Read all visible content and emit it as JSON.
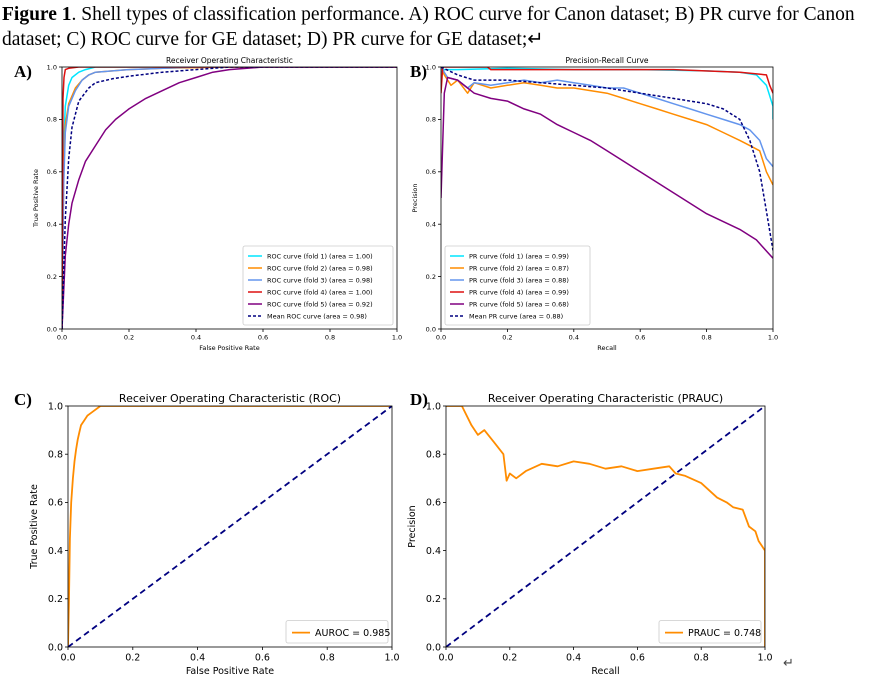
{
  "caption": {
    "label": "Figure 1",
    "text": ". Shell types of classification performance. A) ROC curve for Canon dataset; B) PR curve for Canon dataset; C) ROC curve for GE dataset; D) PR curve for GE dataset;↵"
  },
  "panels": [
    "A)",
    "B)",
    "C)",
    "D)"
  ],
  "return_mark": "↵",
  "chart_data": [
    {
      "type": "line",
      "title": "Receiver Operating Characteristic",
      "xlabel": "False Positive Rate",
      "ylabel": "True Positive Rate",
      "xlim": [
        0,
        1
      ],
      "ylim": [
        0,
        1
      ],
      "xticks": [
        "0.0",
        "0.2",
        "0.4",
        "0.6",
        "0.8",
        "1.0"
      ],
      "yticks": [
        "0.0",
        "0.2",
        "0.4",
        "0.6",
        "0.8",
        "1.0"
      ],
      "legend_position": "lower-right",
      "series": [
        {
          "name": "ROC curve (fold 1) (area = 1.00)",
          "color": "#00e5ff",
          "style": "solid",
          "x": [
            0,
            0.005,
            0.01,
            0.02,
            0.03,
            0.05,
            0.07,
            0.1,
            0.2,
            1
          ],
          "y": [
            0,
            0.7,
            0.85,
            0.93,
            0.96,
            0.98,
            0.99,
            1.0,
            1.0,
            1.0
          ]
        },
        {
          "name": "ROC curve (fold 2) (area = 0.98)",
          "color": "#ff8c00",
          "style": "solid",
          "x": [
            0,
            0.005,
            0.01,
            0.02,
            0.04,
            0.06,
            0.08,
            0.1,
            0.2,
            0.3,
            0.5,
            1
          ],
          "y": [
            0,
            0.6,
            0.78,
            0.86,
            0.92,
            0.95,
            0.97,
            0.98,
            0.99,
            0.995,
            1.0,
            1.0
          ]
        },
        {
          "name": "ROC curve (fold 3) (area = 0.98)",
          "color": "#6495ed",
          "style": "solid",
          "x": [
            0,
            0.005,
            0.01,
            0.02,
            0.04,
            0.06,
            0.08,
            0.1,
            0.2,
            0.4,
            1
          ],
          "y": [
            0,
            0.55,
            0.75,
            0.85,
            0.91,
            0.95,
            0.97,
            0.98,
            0.99,
            1.0,
            1.0
          ]
        },
        {
          "name": "ROC curve (fold 4) (area = 1.00)",
          "color": "#dd1111",
          "style": "solid",
          "x": [
            0,
            0.003,
            0.006,
            0.01,
            0.02,
            0.05,
            0.1,
            1
          ],
          "y": [
            0,
            0.88,
            0.96,
            0.99,
            0.995,
            1.0,
            1.0,
            1.0
          ]
        },
        {
          "name": "ROC curve (fold 5) (area = 0.92)",
          "color": "#800080",
          "style": "solid",
          "x": [
            0,
            0.01,
            0.02,
            0.03,
            0.05,
            0.07,
            0.1,
            0.13,
            0.16,
            0.2,
            0.25,
            0.3,
            0.35,
            0.4,
            0.45,
            0.5,
            0.6,
            0.7,
            1.0
          ],
          "y": [
            0,
            0.28,
            0.4,
            0.48,
            0.57,
            0.64,
            0.7,
            0.76,
            0.8,
            0.84,
            0.88,
            0.91,
            0.94,
            0.96,
            0.98,
            0.99,
            1.0,
            1.0,
            1.0
          ]
        },
        {
          "name": "Mean ROC curve (area = 0.98)",
          "color": "#000080",
          "style": "dashed",
          "x": [
            0,
            0.01,
            0.02,
            0.03,
            0.05,
            0.08,
            0.1,
            0.15,
            0.2,
            0.3,
            0.4,
            0.5,
            1
          ],
          "y": [
            0,
            0.42,
            0.65,
            0.77,
            0.87,
            0.92,
            0.94,
            0.955,
            0.965,
            0.98,
            0.99,
            1.0,
            1.0
          ]
        }
      ]
    },
    {
      "type": "line",
      "title": "Precision-Recall Curve",
      "xlabel": "Recall",
      "ylabel": "Precision",
      "xlim": [
        0,
        1
      ],
      "ylim": [
        0,
        1
      ],
      "xticks": [
        "0.0",
        "0.2",
        "0.4",
        "0.6",
        "0.8",
        "1.0"
      ],
      "yticks": [
        "0.0",
        "0.2",
        "0.4",
        "0.6",
        "0.8",
        "1.0"
      ],
      "legend_position": "lower-left",
      "series": [
        {
          "name": "PR curve (fold 1) (area = 0.99)",
          "color": "#00e5ff",
          "style": "solid",
          "x": [
            0,
            0.01,
            0.05,
            0.2,
            0.4,
            0.6,
            0.8,
            0.9,
            0.95,
            0.98,
            1.0,
            1.0
          ],
          "y": [
            0.98,
            0.99,
            0.99,
            0.995,
            0.99,
            0.99,
            0.985,
            0.98,
            0.97,
            0.93,
            0.85,
            0.8
          ]
        },
        {
          "name": "PR curve (fold 2) (area = 0.87)",
          "color": "#ff8c00",
          "style": "solid",
          "x": [
            0,
            0.01,
            0.03,
            0.05,
            0.08,
            0.1,
            0.15,
            0.2,
            0.25,
            0.3,
            0.35,
            0.4,
            0.45,
            0.5,
            0.55,
            0.6,
            0.65,
            0.7,
            0.75,
            0.8,
            0.85,
            0.9,
            0.93,
            0.96,
            0.98,
            1.0
          ],
          "y": [
            1.0,
            0.97,
            0.93,
            0.95,
            0.9,
            0.94,
            0.92,
            0.93,
            0.94,
            0.93,
            0.92,
            0.92,
            0.91,
            0.9,
            0.88,
            0.86,
            0.84,
            0.82,
            0.8,
            0.78,
            0.75,
            0.72,
            0.7,
            0.68,
            0.6,
            0.55
          ]
        },
        {
          "name": "PR curve (fold 3) (area = 0.88)",
          "color": "#6495ed",
          "style": "solid",
          "x": [
            0,
            0.02,
            0.05,
            0.08,
            0.1,
            0.15,
            0.2,
            0.25,
            0.3,
            0.35,
            0.4,
            0.45,
            0.5,
            0.55,
            0.6,
            0.65,
            0.7,
            0.75,
            0.8,
            0.85,
            0.9,
            0.93,
            0.96,
            0.98,
            1.0
          ],
          "y": [
            1.0,
            0.96,
            0.95,
            0.92,
            0.94,
            0.93,
            0.94,
            0.95,
            0.94,
            0.95,
            0.94,
            0.93,
            0.92,
            0.92,
            0.9,
            0.88,
            0.86,
            0.84,
            0.82,
            0.8,
            0.78,
            0.76,
            0.72,
            0.65,
            0.62
          ]
        },
        {
          "name": "PR curve (fold 4) (area = 0.99)",
          "color": "#dd1111",
          "style": "solid",
          "x": [
            0,
            0.005,
            0.01,
            0.05,
            0.14,
            0.15,
            0.3,
            0.5,
            0.7,
            0.9,
            0.98,
            0.99,
            1.0
          ],
          "y": [
            0.9,
            1.0,
            1.0,
            1.0,
            1.0,
            0.99,
            0.99,
            0.99,
            0.99,
            0.98,
            0.97,
            0.93,
            0.9
          ]
        },
        {
          "name": "PR curve (fold 5) (area = 0.68)",
          "color": "#800080",
          "style": "solid",
          "x": [
            0,
            0.01,
            0.02,
            0.05,
            0.08,
            0.1,
            0.15,
            0.2,
            0.25,
            0.3,
            0.35,
            0.4,
            0.45,
            0.5,
            0.55,
            0.6,
            0.65,
            0.7,
            0.75,
            0.8,
            0.85,
            0.9,
            0.95,
            1.0
          ],
          "y": [
            0.5,
            0.9,
            0.96,
            0.95,
            0.92,
            0.9,
            0.88,
            0.87,
            0.84,
            0.82,
            0.78,
            0.75,
            0.72,
            0.68,
            0.64,
            0.6,
            0.56,
            0.52,
            0.48,
            0.44,
            0.41,
            0.38,
            0.34,
            0.27
          ]
        },
        {
          "name": "Mean PR curve (area = 0.88)",
          "color": "#000080",
          "style": "dashed",
          "x": [
            0,
            0.05,
            0.1,
            0.2,
            0.3,
            0.4,
            0.5,
            0.6,
            0.7,
            0.8,
            0.85,
            0.9,
            0.93,
            0.96,
            0.98,
            1.0
          ],
          "y": [
            1.0,
            0.97,
            0.95,
            0.95,
            0.94,
            0.93,
            0.92,
            0.9,
            0.88,
            0.86,
            0.84,
            0.8,
            0.72,
            0.6,
            0.45,
            0.3
          ]
        }
      ]
    },
    {
      "type": "line",
      "title": "Receiver Operating Characteristic (ROC)",
      "xlabel": "False Positive Rate",
      "ylabel": "True Positive Rate",
      "xlim": [
        0,
        1
      ],
      "ylim": [
        0,
        1
      ],
      "xticks": [
        "0.0",
        "0.2",
        "0.4",
        "0.6",
        "0.8",
        "1.0"
      ],
      "yticks": [
        "0.0",
        "0.2",
        "0.4",
        "0.6",
        "0.8",
        "1.0"
      ],
      "legend_position": "lower-right",
      "series": [
        {
          "name": "AUROC = 0.985",
          "color": "#ff8c00",
          "style": "solid",
          "x": [
            0,
            0.003,
            0.006,
            0.01,
            0.015,
            0.02,
            0.025,
            0.03,
            0.035,
            0.04,
            0.05,
            0.06,
            0.07,
            0.08,
            0.09,
            0.1,
            1.0
          ],
          "y": [
            0,
            0.2,
            0.45,
            0.6,
            0.7,
            0.77,
            0.82,
            0.86,
            0.89,
            0.92,
            0.94,
            0.96,
            0.97,
            0.98,
            0.99,
            1.0,
            1.0
          ]
        },
        {
          "name": "",
          "color": "#000080",
          "style": "dashed",
          "x": [
            0,
            1
          ],
          "y": [
            0,
            1
          ]
        }
      ]
    },
    {
      "type": "line",
      "title": "Receiver Operating Characteristic (PRAUC)",
      "xlabel": "Recall",
      "ylabel": "Precision",
      "xlim": [
        0,
        1
      ],
      "ylim": [
        0,
        1
      ],
      "xticks": [
        "0.0",
        "0.2",
        "0.4",
        "0.6",
        "0.8",
        "1.0"
      ],
      "yticks": [
        "0.0",
        "0.2",
        "0.4",
        "0.6",
        "0.8",
        "1.0"
      ],
      "legend_position": "lower-right",
      "series": [
        {
          "name": "PRAUC = 0.748",
          "color": "#ff8c00",
          "style": "solid",
          "x": [
            0,
            0.05,
            0.08,
            0.1,
            0.12,
            0.15,
            0.18,
            0.19,
            0.2,
            0.22,
            0.25,
            0.3,
            0.35,
            0.4,
            0.45,
            0.5,
            0.55,
            0.6,
            0.65,
            0.7,
            0.72,
            0.75,
            0.8,
            0.85,
            0.88,
            0.9,
            0.93,
            0.95,
            0.97,
            0.98,
            0.99,
            1.0,
            1.0
          ],
          "y": [
            1.0,
            1.0,
            0.92,
            0.88,
            0.9,
            0.85,
            0.8,
            0.69,
            0.72,
            0.7,
            0.73,
            0.76,
            0.75,
            0.77,
            0.76,
            0.74,
            0.75,
            0.73,
            0.74,
            0.75,
            0.72,
            0.71,
            0.68,
            0.62,
            0.6,
            0.58,
            0.57,
            0.5,
            0.48,
            0.44,
            0.42,
            0.4,
            0.0
          ]
        },
        {
          "name": "",
          "color": "#000080",
          "style": "dashed",
          "x": [
            0,
            1
          ],
          "y": [
            0,
            1
          ]
        }
      ]
    }
  ]
}
